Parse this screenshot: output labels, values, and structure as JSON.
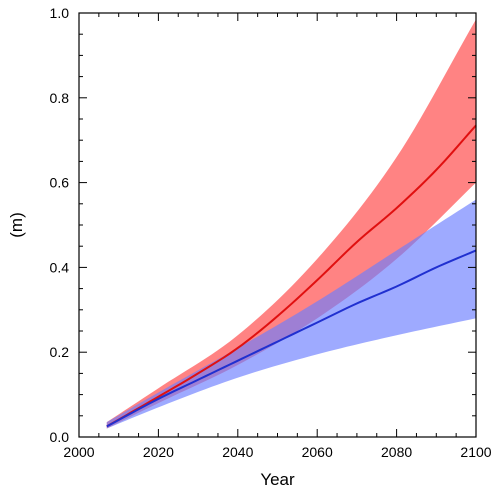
{
  "chart_data": {
    "type": "area",
    "xlabel": "Year",
    "ylabel": "(m)",
    "xlim": [
      2000,
      2100
    ],
    "ylim": [
      0.0,
      1.0
    ],
    "x_ticks": [
      "2000",
      "2020",
      "2040",
      "2060",
      "2080",
      "2100"
    ],
    "y_ticks": [
      "0.0",
      "0.2",
      "0.4",
      "0.6",
      "0.8",
      "1.0"
    ],
    "grid": false,
    "legend": "none",
    "bands": [
      {
        "color": "#ff5a5a",
        "opacity": 0.75,
        "x": [
          2007,
          2020,
          2040,
          2060,
          2080,
          2100
        ],
        "lower": [
          0.02,
          0.08,
          0.17,
          0.28,
          0.42,
          0.6
        ],
        "upper": [
          0.035,
          0.115,
          0.24,
          0.42,
          0.66,
          0.985
        ]
      },
      {
        "color": "#6a7cff",
        "opacity": 0.65,
        "x": [
          2007,
          2020,
          2040,
          2060,
          2080,
          2100
        ],
        "lower": [
          0.02,
          0.07,
          0.14,
          0.195,
          0.24,
          0.28
        ],
        "upper": [
          0.035,
          0.105,
          0.21,
          0.32,
          0.44,
          0.56
        ]
      }
    ],
    "series": [
      {
        "color": "#e01010",
        "x": [
          2007,
          2020,
          2030,
          2040,
          2050,
          2060,
          2070,
          2080,
          2090,
          2100
        ],
        "values": [
          0.025,
          0.095,
          0.15,
          0.21,
          0.285,
          0.37,
          0.46,
          0.54,
          0.63,
          0.735
        ]
      },
      {
        "color": "#2030d0",
        "x": [
          2007,
          2020,
          2030,
          2040,
          2050,
          2060,
          2070,
          2080,
          2090,
          2100
        ],
        "values": [
          0.025,
          0.09,
          0.135,
          0.18,
          0.225,
          0.27,
          0.315,
          0.355,
          0.4,
          0.44
        ]
      }
    ]
  }
}
